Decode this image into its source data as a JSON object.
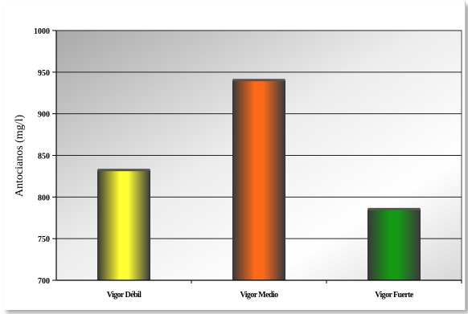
{
  "chart_data": {
    "type": "bar",
    "categories": [
      "Vigor Débil",
      "Vigor Medio",
      "Vigor Fuerte"
    ],
    "values": [
      832,
      940,
      785
    ],
    "bar_colors": [
      "#ffff33",
      "#ff6a1a",
      "#159a15"
    ],
    "title": "",
    "xlabel": "",
    "ylabel": "Antocianos (mg/l)",
    "ylim": [
      700,
      1000
    ],
    "yticks": [
      700,
      750,
      800,
      850,
      900,
      950,
      1000
    ],
    "grid": true,
    "legend": "none"
  }
}
